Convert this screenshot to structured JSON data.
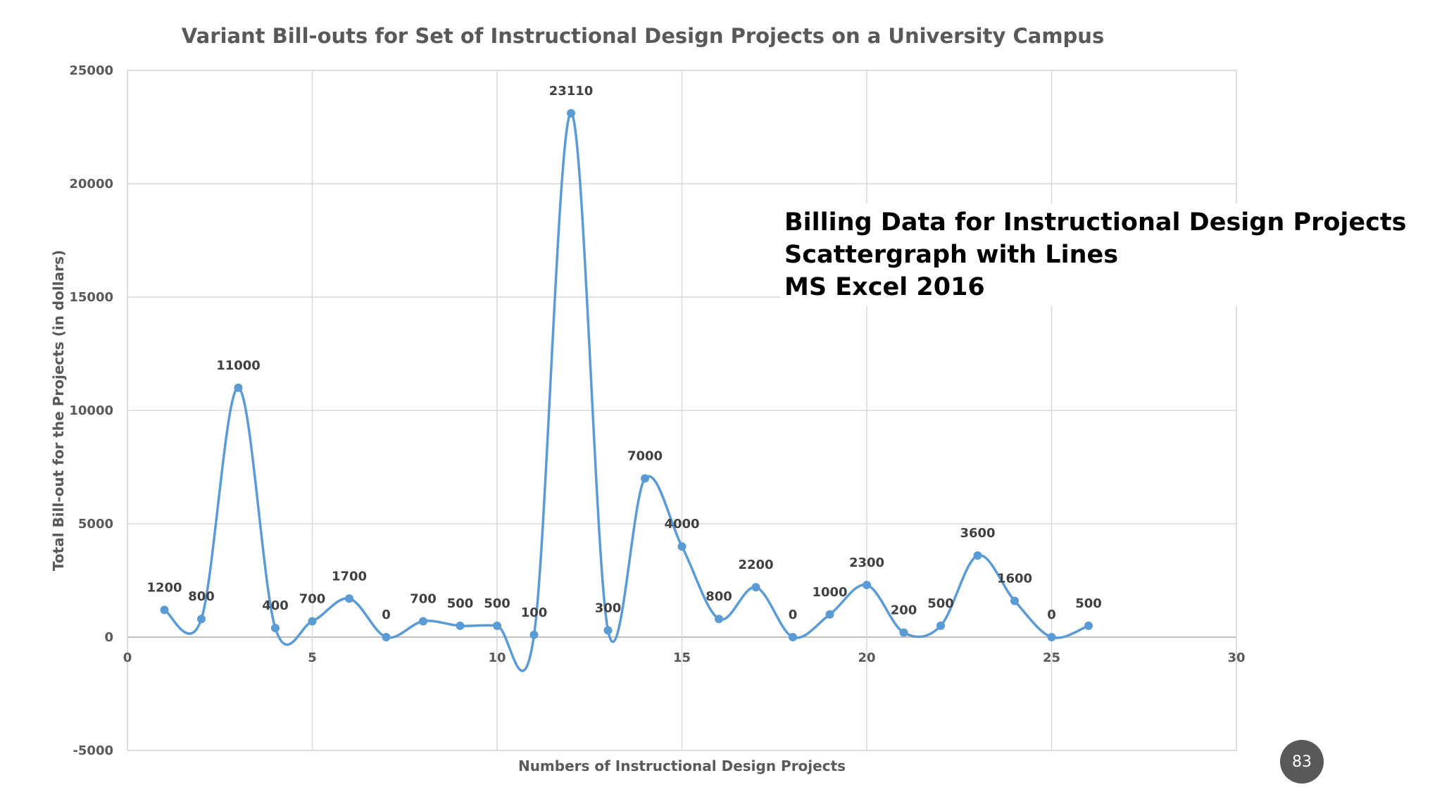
{
  "chart_data": {
    "type": "scatter",
    "title": "Variant Bill-outs for Set of Instructional Design Projects on a University  Campus",
    "xlabel": "Numbers of Instructional Design Projects",
    "ylabel": "Total Bill-out for the Projects (in dollars)",
    "xlim": [
      0,
      30
    ],
    "ylim": [
      -5000,
      25000
    ],
    "x_ticks": [
      0,
      5,
      10,
      15,
      20,
      25,
      30
    ],
    "y_ticks": [
      -5000,
      0,
      5000,
      10000,
      15000,
      20000,
      25000
    ],
    "grid": true,
    "legend": "none",
    "line_style": "smooth",
    "series_color": "#5b9bd5",
    "series": [
      {
        "x": [
          1,
          2,
          3,
          4,
          5,
          6,
          7,
          8,
          9,
          10,
          11,
          12,
          13,
          14,
          15,
          16,
          17,
          18,
          19,
          20,
          21,
          22,
          23,
          24,
          25,
          26
        ],
        "values": [
          1200,
          800,
          11000,
          400,
          700,
          1700,
          0,
          700,
          500,
          500,
          100,
          23110,
          300,
          7000,
          4000,
          800,
          2200,
          0,
          1000,
          2300,
          200,
          500,
          3600,
          1600,
          0,
          500
        ]
      }
    ]
  },
  "annotation": {
    "line1": "Billing Data for Instructional Design Projects",
    "line2": "Scattergraph with Lines",
    "line3": "MS Excel 2016"
  },
  "page_number": "83"
}
